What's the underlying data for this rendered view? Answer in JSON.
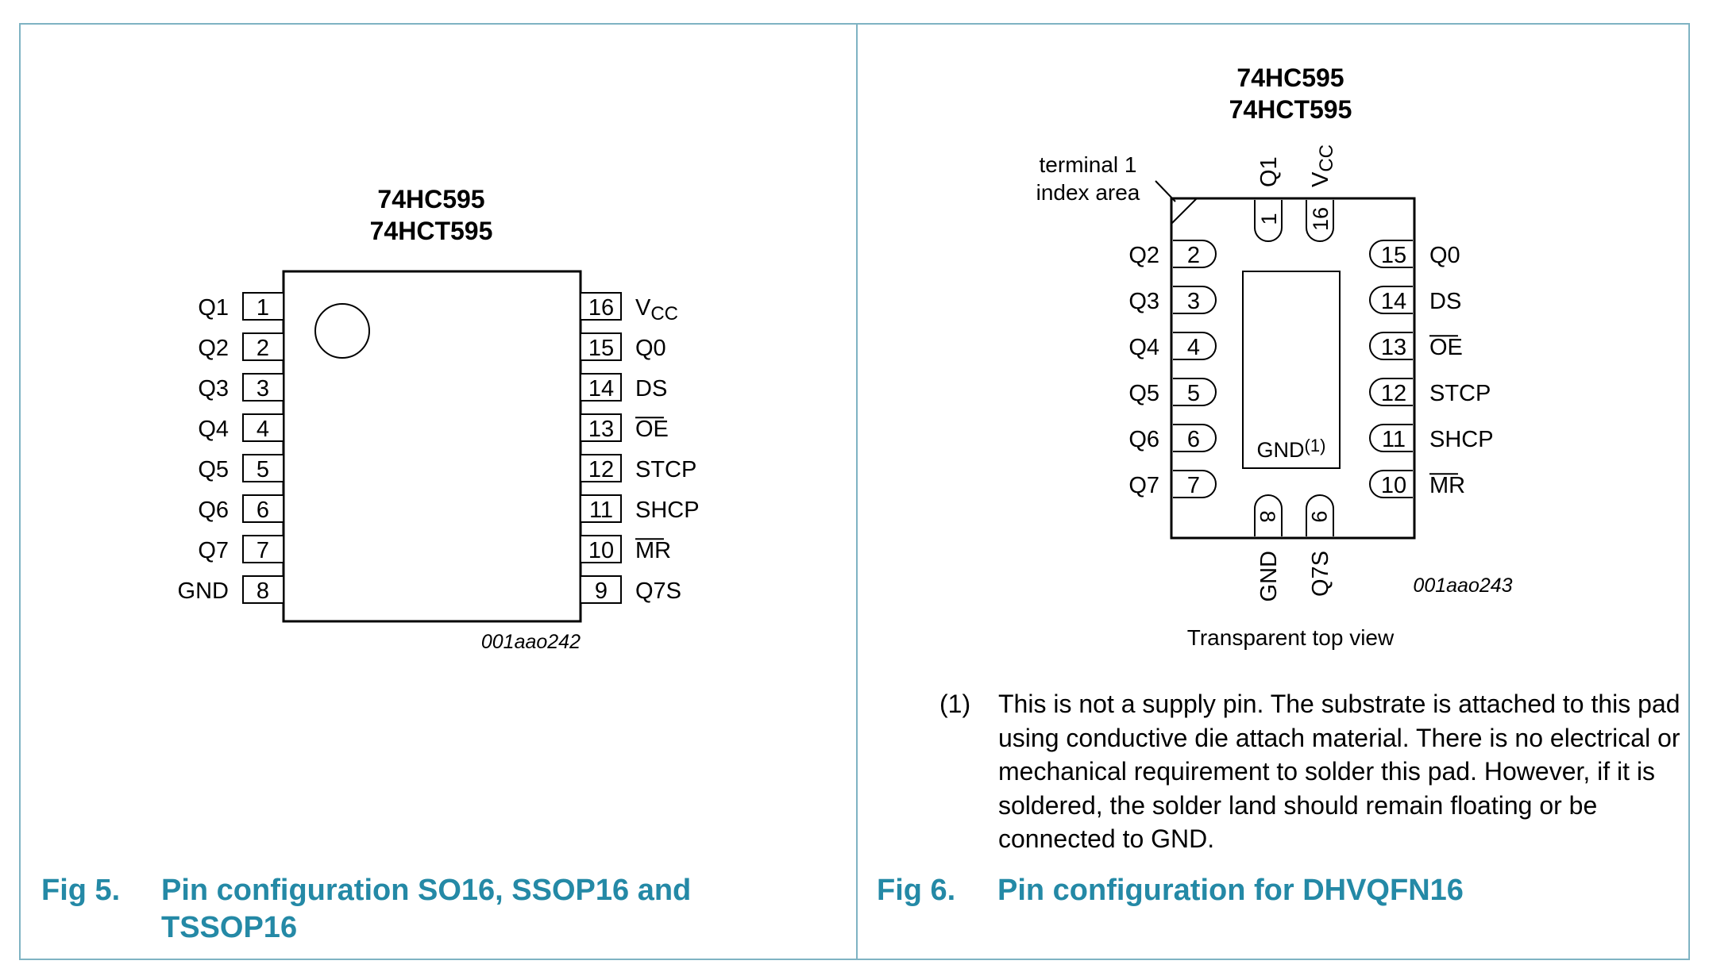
{
  "fig5": {
    "part_line1": "74HC595",
    "part_line2": "74HCT595",
    "left_pins": [
      {
        "num": "1",
        "name": "Q1"
      },
      {
        "num": "2",
        "name": "Q2"
      },
      {
        "num": "3",
        "name": "Q3"
      },
      {
        "num": "4",
        "name": "Q4"
      },
      {
        "num": "5",
        "name": "Q5"
      },
      {
        "num": "6",
        "name": "Q6"
      },
      {
        "num": "7",
        "name": "Q7"
      },
      {
        "num": "8",
        "name": "GND"
      }
    ],
    "right_pins": [
      {
        "num": "16",
        "name": "V",
        "sub": "CC"
      },
      {
        "num": "15",
        "name": "Q0"
      },
      {
        "num": "14",
        "name": "DS"
      },
      {
        "num": "13",
        "name": "OE",
        "overline": true
      },
      {
        "num": "12",
        "name": "STCP"
      },
      {
        "num": "11",
        "name": "SHCP"
      },
      {
        "num": "10",
        "name": "MR",
        "overline": true
      },
      {
        "num": "9",
        "name": "Q7S"
      }
    ],
    "code": "001aao242",
    "caption_num": "Fig 5.",
    "caption_title": "Pin configuration SO16, SSOP16 and TSSOP16"
  },
  "fig6": {
    "part_line1": "74HC595",
    "part_line2": "74HCT595",
    "index_label_line1": "terminal 1",
    "index_label_line2": "index area",
    "top_pins": [
      {
        "num": "1",
        "name": "Q1"
      },
      {
        "num": "16",
        "name": "V",
        "sub": "CC"
      }
    ],
    "left_pins": [
      {
        "num": "2",
        "name": "Q2"
      },
      {
        "num": "3",
        "name": "Q3"
      },
      {
        "num": "4",
        "name": "Q4"
      },
      {
        "num": "5",
        "name": "Q5"
      },
      {
        "num": "6",
        "name": "Q6"
      },
      {
        "num": "7",
        "name": "Q7"
      }
    ],
    "right_pins": [
      {
        "num": "15",
        "name": "Q0"
      },
      {
        "num": "14",
        "name": "DS"
      },
      {
        "num": "13",
        "name": "OE",
        "overline": true
      },
      {
        "num": "12",
        "name": "STCP"
      },
      {
        "num": "11",
        "name": "SHCP"
      },
      {
        "num": "10",
        "name": "MR",
        "overline": true
      }
    ],
    "bottom_pins": [
      {
        "num": "8",
        "name": "GND"
      },
      {
        "num": "9",
        "name": "Q7S"
      }
    ],
    "pad_label": "GND",
    "pad_note_ref": "(1)",
    "code": "001aao243",
    "view_label": "Transparent top view",
    "caption_num": "Fig 6.",
    "caption_title": "Pin configuration for DHVQFN16"
  },
  "note": {
    "num": "(1)",
    "text": "This is not a supply pin. The substrate is attached to this pad using conductive die attach material. There is no electrical or mechanical requirement to solder this pad. However, if it is soldered, the solder land should remain floating or be connected to GND."
  }
}
